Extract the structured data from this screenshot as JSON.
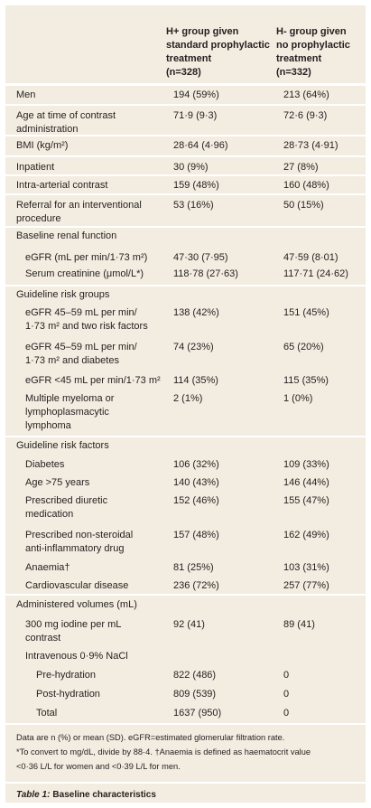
{
  "header": {
    "h_plus": [
      "H+ group given",
      "standard prophylactic",
      "treatment",
      "(n=328)"
    ],
    "h_minus": [
      "H- group given",
      "no prophylactic",
      "treatment",
      "(n=332)"
    ]
  },
  "rows": [
    {
      "label": "Men",
      "h_plus": "194 (59%)",
      "h_minus": "213 (64%)"
    },
    {
      "label": [
        "Age at time of contrast",
        "administration"
      ],
      "h_plus": "71·9 (9·3)",
      "h_minus": "72·6 (9·3)"
    },
    {
      "label": "BMI (kg/m²)",
      "h_plus": "28·64 (4·96)",
      "h_minus": "28·73 (4·91)"
    },
    {
      "label": "Inpatient",
      "h_plus": "30 (9%)",
      "h_minus": "27 (8%)"
    },
    {
      "label": "Intra-arterial contrast",
      "h_plus": "159 (48%)",
      "h_minus": "160 (48%)"
    },
    {
      "label": [
        "Referral for an interventional",
        "procedure"
      ],
      "h_plus": "53 (16%)",
      "h_minus": "50 (15%)"
    },
    {
      "label": "Baseline renal function"
    },
    {
      "label": "eGFR (mL per min/1·73 m²)",
      "h_plus": "47·30 (7·95)",
      "h_minus": "47·59 (8·01)"
    },
    {
      "label": "Serum creatinine (μmol/L*)",
      "h_plus": "118·78 (27·63)",
      "h_minus": "117·71 (24·62)"
    },
    {
      "label": "Guideline risk groups"
    },
    {
      "label": [
        "eGFR 45–59 mL per min/",
        "1·73 m² and two risk factors"
      ],
      "h_plus": "138 (42%)",
      "h_minus": "151 (45%)"
    },
    {
      "label": [
        "eGFR 45–59 mL per min/",
        "1·73 m² and diabetes"
      ],
      "h_plus": "74 (23%)",
      "h_minus": "65 (20%)"
    },
    {
      "label": "eGFR <45 mL per min/1·73 m²",
      "h_plus": "114 (35%)",
      "h_minus": "115 (35%)"
    },
    {
      "label": [
        "Multiple myeloma or",
        "lymphoplasmacytic",
        "lymphoma"
      ],
      "h_plus": "2 (1%)",
      "h_minus": "1 (0%)"
    },
    {
      "label": "Guideline risk factors"
    },
    {
      "label": "Diabetes",
      "h_plus": "106 (32%)",
      "h_minus": "109 (33%)"
    },
    {
      "label": "Age >75 years",
      "h_plus": "140 (43%)",
      "h_minus": "146 (44%)"
    },
    {
      "label": [
        "Prescribed diuretic",
        "medication"
      ],
      "h_plus": "152 (46%)",
      "h_minus": "155 (47%)"
    },
    {
      "label": [
        "Prescribed non-steroidal",
        "anti-inflammatory drug"
      ],
      "h_plus": "157 (48%)",
      "h_minus": "162 (49%)"
    },
    {
      "label": "Anaemia†",
      "h_plus": "81 (25%)",
      "h_minus": "103 (31%)"
    },
    {
      "label": "Cardiovascular disease",
      "h_plus": "236 (72%)",
      "h_minus": "257 (77%)"
    },
    {
      "label": "Administered volumes (mL)"
    },
    {
      "label": [
        "300 mg iodine per mL",
        "contrast"
      ],
      "h_plus": "92 (41)",
      "h_minus": "89 (41)"
    },
    {
      "label": "Intravenous 0·9% NaCl"
    },
    {
      "label": "Pre-hydration",
      "h_plus": "822 (486)",
      "h_minus": "0"
    },
    {
      "label": "Post-hydration",
      "h_plus": "809 (539)",
      "h_minus": "0"
    },
    {
      "label": "Total",
      "h_plus": "1637 (950)",
      "h_minus": "0"
    }
  ],
  "footnote": [
    "Data are n (%) or mean (SD). eGFR=estimated glomerular filtration rate.",
    "*To convert to mg/dL, divide by 88·4. †Anaemia is defined as haematocrit value",
    "<0·36 L/L for women and <0·39 L/L for men."
  ],
  "caption": {
    "label": "Table 1:",
    "text": "Baseline characteristics"
  }
}
